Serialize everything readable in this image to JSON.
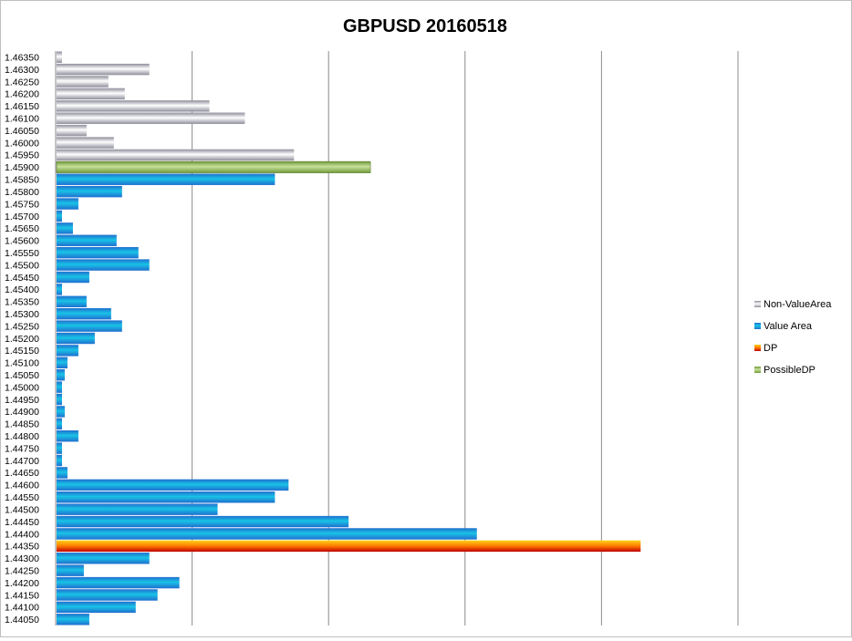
{
  "chart_data": {
    "type": "bar",
    "orientation": "horizontal",
    "title": "GBPUSD 20160518",
    "xlabel": "",
    "ylabel": "",
    "xlim": [
      0,
      250
    ],
    "grid": true,
    "legend_position": "right",
    "legend": [
      {
        "name": "Non-ValueArea",
        "color": "#a6a6b4"
      },
      {
        "name": "Value Area",
        "color": "#1ba8d8"
      },
      {
        "name": "DP",
        "color": "#f5a623"
      },
      {
        "name": "PossibleDP",
        "color": "#8db050"
      }
    ],
    "rows": [
      {
        "price": "1.46350",
        "value": 2,
        "series": "Non-ValueArea"
      },
      {
        "price": "1.46300",
        "value": 34,
        "series": "Non-ValueArea"
      },
      {
        "price": "1.46250",
        "value": 19,
        "series": "Non-ValueArea"
      },
      {
        "price": "1.46200",
        "value": 25,
        "series": "Non-ValueArea"
      },
      {
        "price": "1.46150",
        "value": 56,
        "series": "Non-ValueArea"
      },
      {
        "price": "1.46100",
        "value": 69,
        "series": "Non-ValueArea"
      },
      {
        "price": "1.46050",
        "value": 11,
        "series": "Non-ValueArea"
      },
      {
        "price": "1.46000",
        "value": 21,
        "series": "Non-ValueArea"
      },
      {
        "price": "1.45950",
        "value": 87,
        "series": "Non-ValueArea"
      },
      {
        "price": "1.45900",
        "value": 115,
        "series": "PossibleDP"
      },
      {
        "price": "1.45850",
        "value": 80,
        "series": "Value Area"
      },
      {
        "price": "1.45800",
        "value": 24,
        "series": "Value Area"
      },
      {
        "price": "1.45750",
        "value": 8,
        "series": "Value Area"
      },
      {
        "price": "1.45700",
        "value": 2,
        "series": "Value Area"
      },
      {
        "price": "1.45650",
        "value": 6,
        "series": "Value Area"
      },
      {
        "price": "1.45600",
        "value": 22,
        "series": "Value Area"
      },
      {
        "price": "1.45550",
        "value": 30,
        "series": "Value Area"
      },
      {
        "price": "1.45500",
        "value": 34,
        "series": "Value Area"
      },
      {
        "price": "1.45450",
        "value": 12,
        "series": "Value Area"
      },
      {
        "price": "1.45400",
        "value": 2,
        "series": "Value Area"
      },
      {
        "price": "1.45350",
        "value": 11,
        "series": "Value Area"
      },
      {
        "price": "1.45300",
        "value": 20,
        "series": "Value Area"
      },
      {
        "price": "1.45250",
        "value": 24,
        "series": "Value Area"
      },
      {
        "price": "1.45200",
        "value": 14,
        "series": "Value Area"
      },
      {
        "price": "1.45150",
        "value": 8,
        "series": "Value Area"
      },
      {
        "price": "1.45100",
        "value": 4,
        "series": "Value Area"
      },
      {
        "price": "1.45050",
        "value": 3,
        "series": "Value Area"
      },
      {
        "price": "1.45000",
        "value": 2,
        "series": "Value Area"
      },
      {
        "price": "1.44950",
        "value": 2,
        "series": "Value Area"
      },
      {
        "price": "1.44900",
        "value": 3,
        "series": "Value Area"
      },
      {
        "price": "1.44850",
        "value": 2,
        "series": "Value Area"
      },
      {
        "price": "1.44800",
        "value": 8,
        "series": "Value Area"
      },
      {
        "price": "1.44750",
        "value": 2,
        "series": "Value Area"
      },
      {
        "price": "1.44700",
        "value": 2,
        "series": "Value Area"
      },
      {
        "price": "1.44650",
        "value": 4,
        "series": "Value Area"
      },
      {
        "price": "1.44600",
        "value": 85,
        "series": "Value Area"
      },
      {
        "price": "1.44550",
        "value": 80,
        "series": "Value Area"
      },
      {
        "price": "1.44500",
        "value": 59,
        "series": "Value Area"
      },
      {
        "price": "1.44450",
        "value": 107,
        "series": "Value Area"
      },
      {
        "price": "1.44400",
        "value": 154,
        "series": "Value Area"
      },
      {
        "price": "1.44350",
        "value": 214,
        "series": "DP"
      },
      {
        "price": "1.44300",
        "value": 34,
        "series": "Value Area"
      },
      {
        "price": "1.44250",
        "value": 10,
        "series": "Value Area"
      },
      {
        "price": "1.44200",
        "value": 45,
        "series": "Value Area"
      },
      {
        "price": "1.44150",
        "value": 37,
        "series": "Value Area"
      },
      {
        "price": "1.44100",
        "value": 29,
        "series": "Value Area"
      },
      {
        "price": "1.44050",
        "value": 12,
        "series": "Value Area"
      }
    ]
  }
}
